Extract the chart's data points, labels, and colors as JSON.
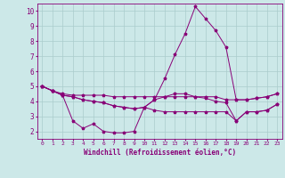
{
  "xlabel": "Windchill (Refroidissement éolien,°C)",
  "xlim": [
    -0.5,
    23.5
  ],
  "ylim": [
    1.5,
    10.5
  ],
  "yticks": [
    2,
    3,
    4,
    5,
    6,
    7,
    8,
    9,
    10
  ],
  "xticks": [
    0,
    1,
    2,
    3,
    4,
    5,
    6,
    7,
    8,
    9,
    10,
    11,
    12,
    13,
    14,
    15,
    16,
    17,
    18,
    19,
    20,
    21,
    22,
    23
  ],
  "bg_color": "#cce8e8",
  "line_color": "#880077",
  "grid_color": "#aacccc",
  "series": [
    [
      5.0,
      4.7,
      4.5,
      4.4,
      4.4,
      4.4,
      4.4,
      4.3,
      4.3,
      4.3,
      4.3,
      4.3,
      4.3,
      4.3,
      4.3,
      4.3,
      4.3,
      4.3,
      4.1,
      4.1,
      4.1,
      4.2,
      4.3,
      4.5
    ],
    [
      5.0,
      4.7,
      4.4,
      2.7,
      2.2,
      2.5,
      2.0,
      1.9,
      1.9,
      2.0,
      3.6,
      3.4,
      3.3,
      3.3,
      3.3,
      3.3,
      3.3,
      3.3,
      3.3,
      2.7,
      3.3,
      3.3,
      3.4,
      3.8
    ],
    [
      5.0,
      4.7,
      4.4,
      4.3,
      4.1,
      4.0,
      3.9,
      3.7,
      3.6,
      3.5,
      3.6,
      4.1,
      5.5,
      7.1,
      8.5,
      10.3,
      9.5,
      8.7,
      7.6,
      4.1,
      4.1,
      4.2,
      4.3,
      4.5
    ],
    [
      5.0,
      4.7,
      4.4,
      4.3,
      4.1,
      4.0,
      3.9,
      3.7,
      3.6,
      3.5,
      3.6,
      4.1,
      4.3,
      4.5,
      4.5,
      4.3,
      4.2,
      4.0,
      3.9,
      2.7,
      3.3,
      3.3,
      3.4,
      3.8
    ]
  ]
}
